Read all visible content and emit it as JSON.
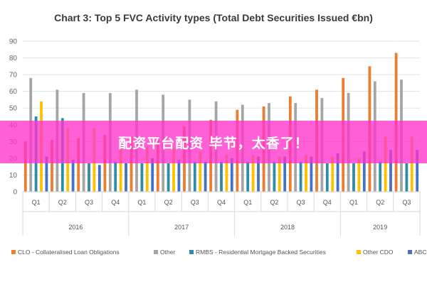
{
  "banner": {
    "text": "配资平台配资 毕节，太香了！"
  },
  "chart_data": {
    "type": "bar",
    "title": "Chart 3: Top 5 FVC Activity types (Total Debt Securities Issued €bn)",
    "categories": [
      "Q1",
      "Q2",
      "Q3",
      "Q4",
      "Q1",
      "Q2",
      "Q3",
      "Q4",
      "Q1",
      "Q2",
      "Q3",
      "Q4",
      "Q1",
      "Q2",
      "Q3"
    ],
    "groups": [
      {
        "label": "2016",
        "span": 4
      },
      {
        "label": "2017",
        "span": 4
      },
      {
        "label": "2018",
        "span": 4
      },
      {
        "label": "2019",
        "span": 3
      }
    ],
    "ylim": [
      0,
      90
    ],
    "yticks": [
      0,
      10,
      20,
      30,
      40,
      50,
      60,
      70,
      80,
      90
    ],
    "grid": true,
    "legend": "bottom",
    "series": [
      {
        "name": "CLO - Collateralised Loan Obligations",
        "color": "#ED7D31",
        "values": [
          30,
          31,
          32,
          34,
          33,
          33,
          39,
          43,
          49,
          51,
          57,
          61,
          68,
          75,
          83
        ]
      },
      {
        "name": "Other",
        "color": "#A5A5A5",
        "values": [
          68,
          61,
          59,
          59,
          61,
          58,
          55,
          54,
          52,
          53,
          53,
          56,
          59,
          66,
          67
        ]
      },
      {
        "name": "RMBS - Residential Mortgage Backed Securities",
        "color": "#2E8CA8",
        "values": [
          45,
          44,
          17,
          18,
          17,
          17,
          18,
          18,
          18,
          18,
          18,
          17,
          17,
          18,
          17
        ]
      },
      {
        "name": "Other CDO",
        "color": "#FFC000",
        "values": [
          54,
          38,
          38,
          30,
          27,
          26,
          24,
          22,
          22,
          21,
          22,
          21,
          20,
          33,
          33
        ]
      },
      {
        "name": "ABCP",
        "color": "#4472C4",
        "values": [
          21,
          19,
          16,
          17,
          20,
          19,
          18,
          20,
          21,
          21,
          21,
          23,
          24,
          25,
          25
        ]
      }
    ]
  }
}
